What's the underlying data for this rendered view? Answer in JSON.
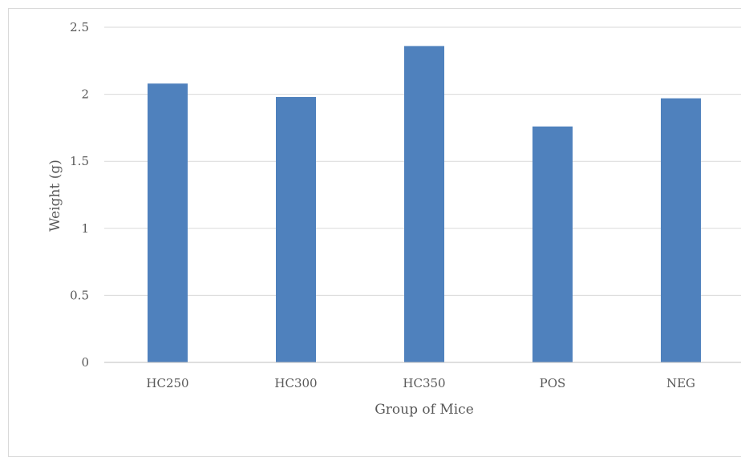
{
  "chart_data": {
    "type": "bar",
    "title": "",
    "xlabel": "Group of Mice",
    "ylabel": "Weight (g)",
    "categories": [
      "HC250",
      "HC300",
      "HC350",
      "POS",
      "NEG"
    ],
    "series": [
      {
        "values": [
          2.08,
          1.98,
          2.36,
          1.76,
          1.97
        ]
      }
    ],
    "ylim": [
      0,
      2.5
    ],
    "yticks": [
      "0",
      "0.5",
      "1",
      "1.5",
      "2",
      "2.5"
    ],
    "grid": true,
    "legend": "none",
    "bar_color": "#4f81bd"
  }
}
